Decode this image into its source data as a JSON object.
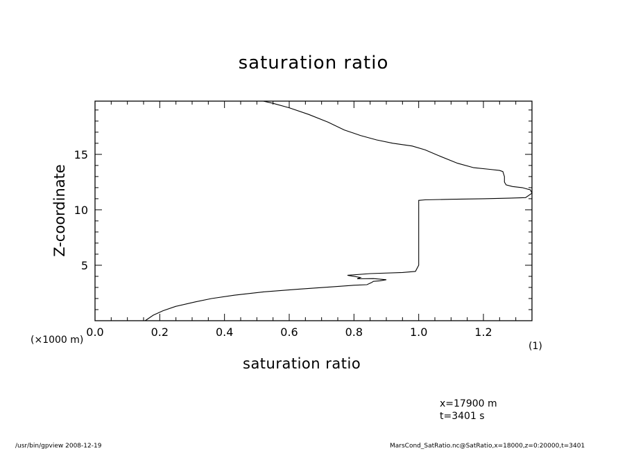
{
  "chart_data": {
    "type": "line",
    "title": "saturation ratio",
    "xlabel": "saturation ratio",
    "ylabel": "Z-coordinate",
    "x_unit_label": "(×1000 m)",
    "y_unit_label": "(1)",
    "xlim": [
      0.0,
      1.35
    ],
    "ylim": [
      0,
      19.8
    ],
    "x_ticks": [
      0.0,
      0.2,
      0.4,
      0.6,
      0.8,
      1.0,
      1.2
    ],
    "x_tick_labels": [
      "0.0",
      "0.2",
      "0.4",
      "0.6",
      "0.8",
      "1.0",
      "1.2"
    ],
    "y_ticks": [
      5,
      10,
      15
    ],
    "y_tick_labels": [
      "5",
      "10",
      "15"
    ],
    "grid": false,
    "series": [
      {
        "x": [
          0.155,
          0.18,
          0.21,
          0.25,
          0.31,
          0.36,
          0.43,
          0.52,
          0.63,
          0.73,
          0.8,
          0.84,
          0.855,
          0.86,
          0.88,
          0.9,
          0.86,
          0.81,
          0.82,
          0.78,
          0.85,
          0.95,
          0.99,
          1.0,
          1.0,
          1.0,
          1.0,
          1.02,
          1.1,
          1.2,
          1.28,
          1.33,
          1.35,
          1.345,
          1.32,
          1.29,
          1.27,
          1.265,
          1.265,
          1.26,
          1.25,
          1.22,
          1.17,
          1.12,
          1.06,
          1.02,
          0.98,
          0.92,
          0.87,
          0.82,
          0.77,
          0.72,
          0.66,
          0.6,
          0.55,
          0.52
        ],
        "y": [
          0.0,
          0.5,
          0.9,
          1.3,
          1.7,
          2.0,
          2.3,
          2.6,
          2.85,
          3.05,
          3.2,
          3.25,
          3.45,
          3.55,
          3.6,
          3.7,
          3.8,
          3.78,
          3.9,
          4.1,
          4.25,
          4.35,
          4.45,
          5.0,
          7.0,
          9.0,
          10.85,
          10.9,
          10.95,
          11.0,
          11.05,
          11.1,
          11.5,
          11.8,
          12.0,
          12.1,
          12.25,
          12.5,
          13.0,
          13.45,
          13.55,
          13.65,
          13.8,
          14.2,
          14.9,
          15.4,
          15.75,
          16.0,
          16.3,
          16.7,
          17.2,
          17.9,
          18.6,
          19.2,
          19.6,
          19.8
        ]
      }
    ]
  },
  "annotations": {
    "info_x": "x=17900  m",
    "info_t": "t=3401  s",
    "footer_left": "/usr/bin/gpview   2008-12-19",
    "footer_right": "MarsCond_SatRatio.nc@SatRatio,x=18000,z=0:20000,t=3401"
  }
}
